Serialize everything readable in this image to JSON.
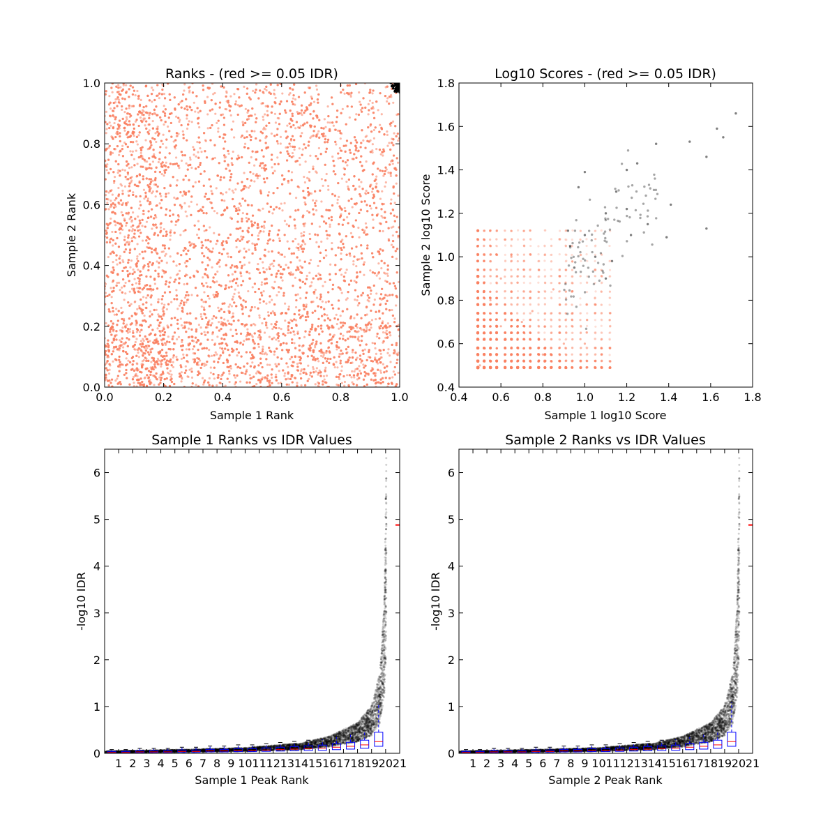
{
  "chart_data": [
    {
      "type": "scatter",
      "title": "Ranks - (red >= 0.05 IDR)",
      "xlabel": "Sample 1 Rank",
      "ylabel": "Sample 2 Rank",
      "xlim": [
        0.0,
        1.0
      ],
      "ylim": [
        0.0,
        1.0
      ],
      "xticks": [
        "0.0",
        "0.2",
        "0.4",
        "0.6",
        "0.8",
        "1.0"
      ],
      "yticks": [
        "0.0",
        "0.2",
        "0.4",
        "0.6",
        "0.8",
        "1.0"
      ],
      "colors": {
        "red": "#fa8060",
        "black": "#000000"
      },
      "description_of_data": "dense cloud of red points covering the whole unit square; black points concentrated near (1.0, 1.0)",
      "series": [
        {
          "color": "red",
          "points": [
            [
              0.05,
              0.1
            ],
            [
              0.12,
              0.05
            ],
            [
              0.18,
              0.15
            ],
            [
              0.3,
              0.66
            ],
            [
              0.33,
              0.34
            ],
            [
              0.5,
              0.5
            ],
            [
              0.66,
              0.9
            ],
            [
              0.68,
              0.34
            ],
            [
              0.9,
              0.66
            ],
            [
              0.85,
              0.88
            ],
            [
              0.95,
              0.2
            ],
            [
              0.1,
              0.85
            ],
            [
              0.45,
              0.75
            ],
            [
              0.75,
              0.45
            ],
            [
              0.25,
              0.55
            ]
          ]
        },
        {
          "color": "black",
          "points": [
            [
              0.98,
              0.99
            ],
            [
              0.99,
              0.98
            ],
            [
              0.995,
              0.995
            ],
            [
              0.97,
              1.0
            ],
            [
              1.0,
              0.97
            ]
          ]
        }
      ]
    },
    {
      "type": "scatter",
      "title": "Log10 Scores - (red >= 0.05 IDR)",
      "xlabel": "Sample 1 log10 Score",
      "ylabel": "Sample 2 log10 Score",
      "xlim": [
        0.4,
        1.8
      ],
      "ylim": [
        0.4,
        1.8
      ],
      "xticks": [
        "0.4",
        "0.6",
        "0.8",
        "1.0",
        "1.2",
        "1.4",
        "1.6",
        "1.8"
      ],
      "yticks": [
        "0.4",
        "0.6",
        "0.8",
        "1.0",
        "1.2",
        "1.4",
        "1.6",
        "1.8"
      ],
      "colors": {
        "red": "#fa8060",
        "black": "#000000"
      },
      "series": [
        {
          "color": "red",
          "points": [
            [
              0.5,
              0.5
            ],
            [
              0.55,
              0.55
            ],
            [
              0.6,
              0.68
            ],
            [
              0.7,
              0.7
            ],
            [
              0.8,
              0.55
            ],
            [
              0.55,
              0.8
            ],
            [
              0.9,
              0.6
            ],
            [
              0.6,
              0.9
            ],
            [
              0.75,
              0.75
            ],
            [
              1.0,
              0.6
            ],
            [
              0.65,
              1.0
            ],
            [
              0.85,
              0.85
            ]
          ]
        },
        {
          "color": "black",
          "points": [
            [
              1.72,
              1.66
            ],
            [
              1.66,
              1.55
            ],
            [
              1.63,
              1.59
            ],
            [
              1.58,
              1.46
            ],
            [
              1.58,
              1.13
            ],
            [
              1.5,
              1.53
            ],
            [
              1.41,
              1.24
            ],
            [
              1.39,
              1.09
            ],
            [
              1.34,
              1.52
            ],
            [
              1.25,
              1.43
            ],
            [
              1.2,
              1.4
            ],
            [
              1.15,
              1.3
            ],
            [
              1.1,
              1.2
            ],
            [
              1.05,
              1.0
            ],
            [
              1.0,
              1.1
            ],
            [
              0.95,
              0.95
            ],
            [
              0.93,
              1.05
            ],
            [
              1.0,
              1.39
            ],
            [
              0.97,
              1.32
            ],
            [
              1.22,
              1.1
            ],
            [
              1.13,
              0.98
            ],
            [
              0.92,
              1.12
            ],
            [
              1.2,
              1.22
            ],
            [
              1.3,
              1.15
            ],
            [
              1.1,
              0.9
            ]
          ]
        }
      ]
    },
    {
      "type": "scatter",
      "title": "Sample 1 Ranks vs IDR Values",
      "xlabel": "Sample 1 Peak Rank",
      "ylabel": "-log10 IDR",
      "xlim": [
        0,
        21
      ],
      "ylim": [
        0,
        6.5
      ],
      "xticks": [
        "1",
        "2",
        "3",
        "4",
        "5",
        "6",
        "7",
        "8",
        "9",
        "10",
        "11",
        "12",
        "13",
        "14",
        "15",
        "16",
        "17",
        "18",
        "19",
        "20",
        "21"
      ],
      "yticks": [
        "0",
        "1",
        "2",
        "3",
        "4",
        "5",
        "6"
      ],
      "colors": {
        "points": "#000000",
        "box": "#0000ff",
        "median": "#ff0000"
      },
      "idr_curve": [
        [
          0,
          0.03
        ],
        [
          5,
          0.05
        ],
        [
          10,
          0.08
        ],
        [
          14,
          0.15
        ],
        [
          16,
          0.25
        ],
        [
          18,
          0.45
        ],
        [
          19,
          0.7
        ],
        [
          19.6,
          1.2
        ],
        [
          19.9,
          2.2
        ],
        [
          20.0,
          3.5
        ],
        [
          20.05,
          4.9
        ]
      ],
      "box_medians": [
        0.02,
        0.02,
        0.03,
        0.03,
        0.03,
        0.04,
        0.04,
        0.05,
        0.05,
        0.06,
        0.06,
        0.07,
        0.08,
        0.09,
        0.1,
        0.11,
        0.13,
        0.15,
        0.18,
        0.25
      ],
      "box_whisker_top_last": 1.05,
      "outlier_marker_value": 4.88
    },
    {
      "type": "scatter",
      "title": "Sample 2 Ranks vs IDR Values",
      "xlabel": "Sample 2 Peak Rank",
      "ylabel": "-log10 IDR",
      "xlim": [
        0,
        21
      ],
      "ylim": [
        0,
        6.5
      ],
      "xticks": [
        "1",
        "2",
        "3",
        "4",
        "5",
        "6",
        "7",
        "8",
        "9",
        "10",
        "11",
        "12",
        "13",
        "14",
        "15",
        "16",
        "17",
        "18",
        "19",
        "20",
        "21"
      ],
      "yticks": [
        "0",
        "1",
        "2",
        "3",
        "4",
        "5",
        "6"
      ],
      "colors": {
        "points": "#000000",
        "box": "#0000ff",
        "median": "#ff0000"
      },
      "idr_curve": [
        [
          0,
          0.03
        ],
        [
          5,
          0.05
        ],
        [
          10,
          0.08
        ],
        [
          14,
          0.15
        ],
        [
          16,
          0.25
        ],
        [
          18,
          0.45
        ],
        [
          19,
          0.7
        ],
        [
          19.6,
          1.2
        ],
        [
          19.9,
          2.2
        ],
        [
          20.0,
          3.5
        ],
        [
          20.05,
          4.9
        ]
      ],
      "box_medians": [
        0.02,
        0.02,
        0.03,
        0.03,
        0.03,
        0.04,
        0.04,
        0.05,
        0.05,
        0.06,
        0.06,
        0.07,
        0.08,
        0.09,
        0.1,
        0.11,
        0.13,
        0.15,
        0.18,
        0.25
      ],
      "box_whisker_top_last": 1.1,
      "outlier_marker_value": 4.88
    }
  ]
}
